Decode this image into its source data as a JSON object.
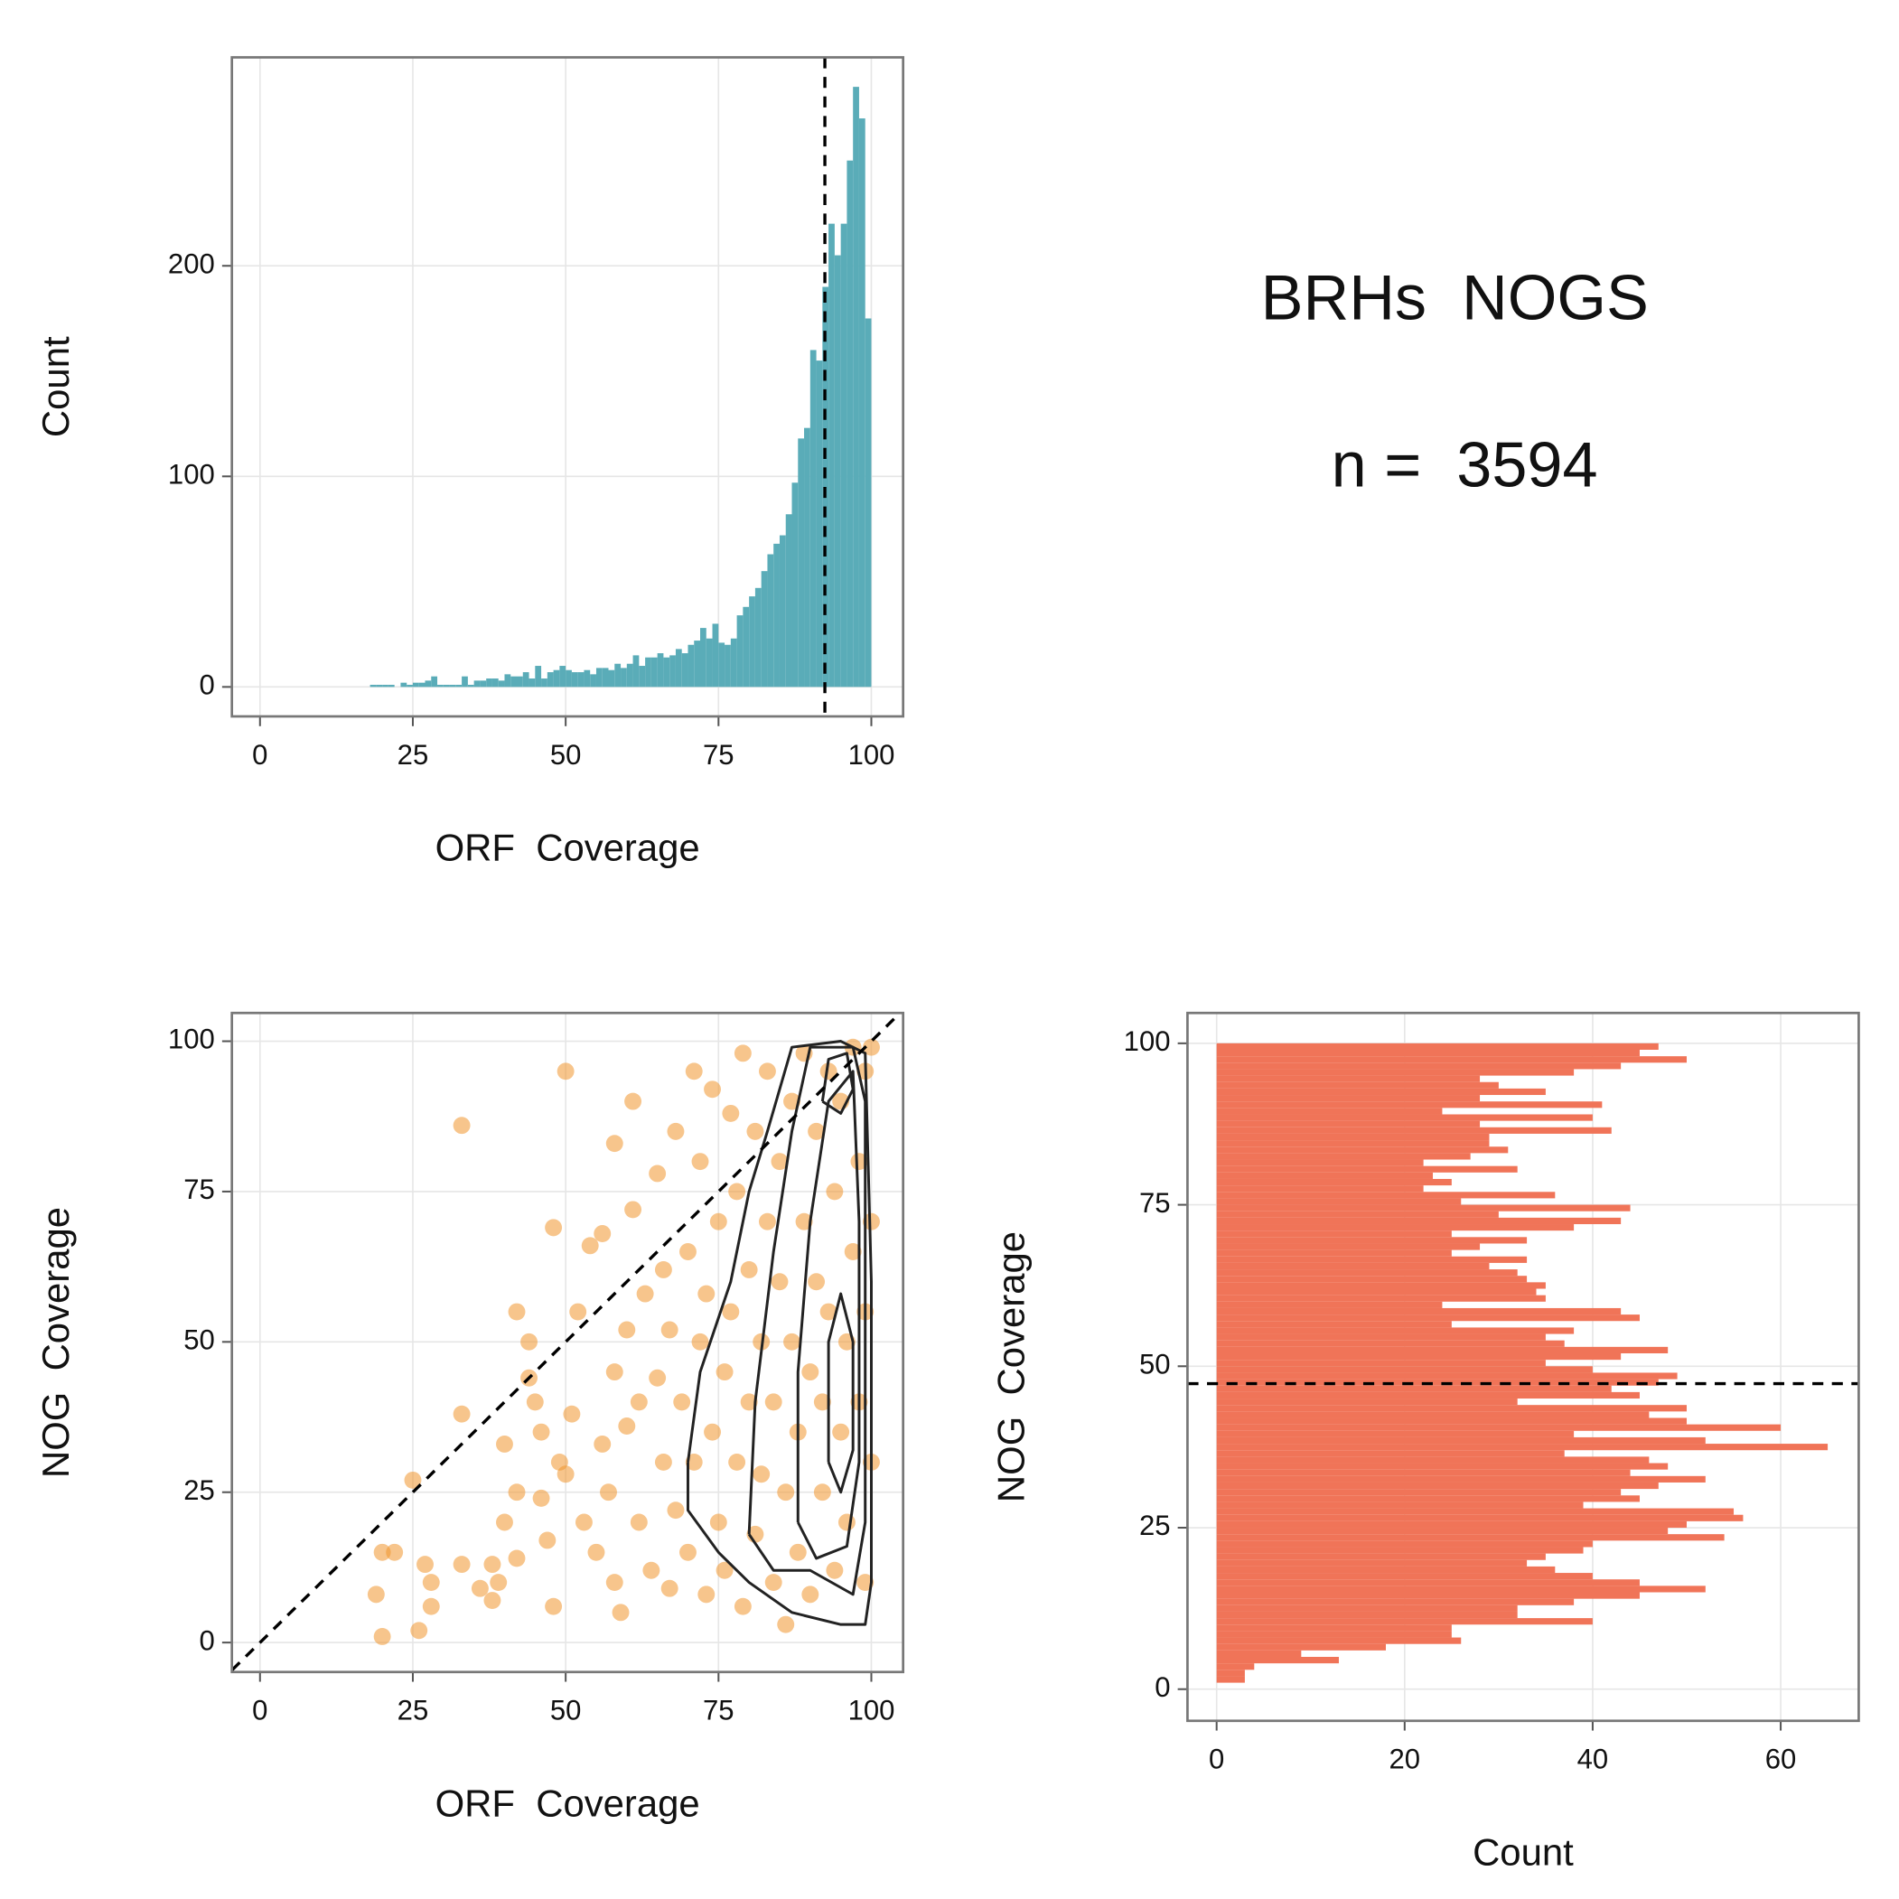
{
  "annotations": {
    "title": "BRHs  NOGS",
    "subtitle": "n =  3594"
  },
  "chart_data": [
    {
      "type": "histogram",
      "orientation": "vertical",
      "xlabel": "ORF  Coverage",
      "ylabel": "Count",
      "bins": [
        18,
        19,
        20,
        21,
        22,
        23,
        24,
        25,
        26,
        27,
        28,
        29,
        30,
        31,
        32,
        33,
        34,
        35,
        36,
        37,
        38,
        39,
        40,
        41,
        42,
        43,
        44,
        45,
        46,
        47,
        48,
        49,
        50,
        51,
        52,
        53,
        54,
        55,
        56,
        57,
        58,
        59,
        60,
        61,
        62,
        63,
        64,
        65,
        66,
        67,
        68,
        69,
        70,
        71,
        72,
        73,
        74,
        75,
        76,
        77,
        78,
        79,
        80,
        81,
        82,
        83,
        84,
        85,
        86,
        87,
        88,
        89,
        90,
        91,
        92,
        93,
        94,
        95,
        96,
        97,
        98,
        99,
        100
      ],
      "counts": [
        1,
        1,
        1,
        1,
        0,
        2,
        1,
        2,
        2,
        3,
        5,
        1,
        1,
        1,
        1,
        5,
        1,
        3,
        3,
        4,
        4,
        3,
        6,
        5,
        5,
        7,
        4,
        10,
        4,
        7,
        8,
        10,
        8,
        7,
        7,
        8,
        6,
        9,
        9,
        8,
        11,
        9,
        11,
        15,
        10,
        14,
        14,
        16,
        14,
        15,
        18,
        16,
        20,
        22,
        28,
        23,
        30,
        21,
        20,
        23,
        34,
        38,
        43,
        47,
        55,
        63,
        68,
        72,
        82,
        97,
        118,
        123,
        160,
        155,
        190,
        220,
        205,
        220,
        250,
        285,
        270,
        175
      ],
      "color": "#5aacb8",
      "vline": 92.4,
      "xlim": [
        -4.6,
        105.2
      ],
      "ylim": [
        -14,
        299
      ],
      "xticks": [
        0,
        25,
        50,
        75,
        100
      ],
      "yticks": [
        0,
        100,
        200
      ],
      "grid": true
    },
    {
      "type": "scatter",
      "xlabel": "ORF  Coverage",
      "ylabel": "NOG  Coverage",
      "x": [
        33,
        50,
        61,
        58,
        48,
        19,
        20,
        26,
        20,
        22,
        25,
        27,
        28,
        28,
        33,
        33,
        36,
        38,
        38,
        39,
        40,
        40,
        42,
        42,
        42,
        44,
        44,
        45,
        46,
        46,
        47,
        48,
        49,
        50,
        51,
        52,
        53,
        54,
        55,
        56,
        56,
        57,
        58,
        58,
        59,
        60,
        60,
        61,
        62,
        62,
        63,
        64,
        65,
        65,
        66,
        66,
        67,
        67,
        68,
        68,
        69,
        70,
        70,
        71,
        71,
        72,
        72,
        73,
        73,
        74,
        74,
        75,
        75,
        76,
        76,
        77,
        77,
        78,
        78,
        79,
        79,
        80,
        80,
        81,
        81,
        82,
        82,
        83,
        83,
        84,
        84,
        85,
        85,
        86,
        86,
        87,
        87,
        88,
        88,
        89,
        89,
        90,
        90,
        91,
        91,
        92,
        92,
        93,
        93,
        94,
        94,
        95,
        95,
        96,
        96,
        97,
        97,
        98,
        98,
        99,
        99,
        99,
        100,
        100,
        100
      ],
      "y": [
        86,
        95,
        90,
        83,
        69,
        8,
        1,
        2,
        15,
        15,
        27,
        13,
        10,
        6,
        38,
        13,
        9,
        13,
        7,
        10,
        20,
        33,
        25,
        14,
        55,
        50,
        44,
        40,
        35,
        24,
        17,
        6,
        30,
        28,
        38,
        55,
        20,
        66,
        15,
        33,
        68,
        25,
        45,
        10,
        5,
        52,
        36,
        72,
        20,
        40,
        58,
        12,
        44,
        78,
        30,
        62,
        52,
        9,
        85,
        22,
        40,
        65,
        15,
        95,
        30,
        50,
        80,
        8,
        58,
        35,
        92,
        20,
        70,
        45,
        12,
        88,
        55,
        30,
        75,
        6,
        98,
        40,
        62,
        18,
        85,
        50,
        28,
        95,
        70,
        10,
        40,
        60,
        80,
        3,
        25,
        50,
        90,
        35,
        15,
        70,
        98,
        45,
        8,
        60,
        85,
        25,
        40,
        95,
        55,
        12,
        75,
        35,
        90,
        50,
        20,
        65,
        99,
        40,
        80,
        10,
        55,
        95,
        30,
        70,
        99
      ],
      "color": "#f0952e",
      "contour_color": "#222222",
      "diagonal": true,
      "contours": [
        {
          "x": [
            70,
            72,
            77,
            80,
            83,
            87,
            95,
            99,
            100,
            100,
            99,
            95,
            87,
            80,
            75,
            70,
            70
          ],
          "y": [
            30,
            45,
            60,
            75,
            85,
            99,
            100,
            98,
            60,
            10,
            3,
            3,
            5,
            10,
            15,
            22,
            30
          ]
        },
        {
          "x": [
            80,
            81,
            84,
            87,
            90,
            97,
            99,
            99,
            97,
            90,
            84,
            80
          ],
          "y": [
            18,
            40,
            65,
            85,
            99,
            99,
            90,
            20,
            8,
            12,
            12,
            18
          ]
        },
        {
          "x": [
            88,
            88,
            90,
            93,
            97,
            98,
            98,
            96,
            91,
            88
          ],
          "y": [
            20,
            45,
            70,
            90,
            95,
            70,
            30,
            16,
            14,
            20
          ]
        },
        {
          "x": [
            92,
            93,
            96,
            97,
            95,
            92
          ],
          "y": [
            90,
            97,
            98,
            92,
            88,
            90
          ]
        },
        {
          "x": [
            93,
            93,
            95,
            97,
            97,
            95,
            93
          ],
          "y": [
            30,
            50,
            58,
            50,
            32,
            25,
            30
          ]
        }
      ],
      "xlim": [
        -4.6,
        105.2
      ],
      "ylim": [
        -4.9,
        104.7
      ],
      "xticks": [
        0,
        25,
        50,
        75,
        100
      ],
      "yticks": [
        0,
        25,
        50,
        75,
        100
      ],
      "grid": true
    },
    {
      "type": "histogram",
      "orientation": "horizontal",
      "xlabel": "Count",
      "ylabel": "NOG  Coverage",
      "bins": [
        1,
        2,
        3,
        4,
        5,
        6,
        7,
        8,
        9,
        10,
        11,
        12,
        13,
        14,
        15,
        16,
        17,
        18,
        19,
        20,
        21,
        22,
        23,
        24,
        25,
        26,
        27,
        28,
        29,
        30,
        31,
        32,
        33,
        34,
        35,
        36,
        37,
        38,
        39,
        40,
        41,
        42,
        43,
        44,
        45,
        46,
        47,
        48,
        49,
        50,
        51,
        52,
        53,
        54,
        55,
        56,
        57,
        58,
        59,
        60,
        61,
        62,
        63,
        64,
        65,
        66,
        67,
        68,
        69,
        70,
        71,
        72,
        73,
        74,
        75,
        76,
        77,
        78,
        79,
        80,
        81,
        82,
        83,
        84,
        85,
        86,
        87,
        88,
        89,
        90,
        91,
        92,
        93,
        94,
        95,
        96,
        97,
        98,
        99,
        100
      ],
      "counts": [
        3,
        3,
        4,
        13,
        9,
        18,
        26,
        25,
        25,
        40,
        32,
        32,
        38,
        45,
        52,
        45,
        40,
        36,
        33,
        35,
        39,
        40,
        54,
        48,
        50,
        56,
        55,
        39,
        45,
        43,
        47,
        52,
        44,
        48,
        46,
        37,
        65,
        52,
        38,
        60,
        50,
        46,
        50,
        32,
        45,
        42,
        47,
        49,
        40,
        35,
        43,
        48,
        37,
        35,
        38,
        25,
        45,
        43,
        24,
        35,
        34,
        35,
        33,
        32,
        29,
        33,
        25,
        28,
        33,
        25,
        38,
        43,
        30,
        44,
        26,
        36,
        22,
        25,
        23,
        32,
        22,
        27,
        31,
        29,
        29,
        42,
        28,
        40,
        24,
        41,
        28,
        35,
        30,
        28,
        38,
        43,
        50,
        45,
        47
      ],
      "color": "#f07458",
      "hline": 47.3,
      "xlim": [
        -3.1,
        68.3
      ],
      "ylim": [
        -4.9,
        104.7
      ],
      "xticks": [
        0,
        20,
        40,
        60
      ],
      "yticks": [
        0,
        25,
        50,
        75,
        100
      ],
      "grid": true
    }
  ]
}
